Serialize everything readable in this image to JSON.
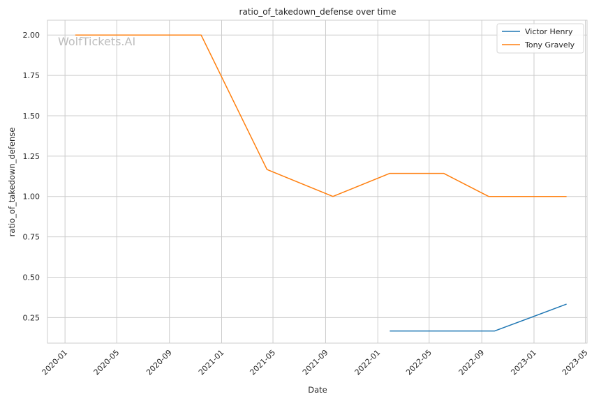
{
  "chart_data": {
    "type": "line",
    "title": "ratio_of_takedown_defense over time",
    "xlabel": "Date",
    "ylabel": "ratio_of_takedown_defense",
    "watermark": "WolfTickets.AI",
    "x_ticks": [
      "2020-01-01",
      "2020-05-01",
      "2020-09-01",
      "2021-01-01",
      "2021-05-01",
      "2021-09-01",
      "2022-01-01",
      "2022-05-01",
      "2022-09-01",
      "2023-01-01",
      "2023-05-01"
    ],
    "x_tick_labels": [
      "2020-01",
      "2020-05",
      "2020-09",
      "2021-01",
      "2021-05",
      "2021-09",
      "2022-01",
      "2022-05",
      "2022-09",
      "2023-01",
      "2023-05"
    ],
    "xlim": [
      "2019-11-21",
      "2023-05-05"
    ],
    "y_ticks": [
      0.25,
      0.5,
      0.75,
      1.0,
      1.25,
      1.5,
      1.75,
      2.0
    ],
    "y_tick_labels": [
      "0.25",
      "0.50",
      "0.75",
      "1.00",
      "1.25",
      "1.50",
      "1.75",
      "2.00"
    ],
    "ylim": [
      0.0917,
      2.0917
    ],
    "grid": true,
    "legend_position": "top-right",
    "series": [
      {
        "name": "Victor Henry",
        "color": "#1f77b4",
        "points": [
          {
            "x": "2022-01-29",
            "y": 0.1667
          },
          {
            "x": "2022-10-01",
            "y": 0.1667
          },
          {
            "x": "2023-03-18",
            "y": 0.3333
          }
        ]
      },
      {
        "name": "Tony Gravely",
        "color": "#ff7f0e",
        "points": [
          {
            "x": "2020-01-25",
            "y": 2.0
          },
          {
            "x": "2020-11-14",
            "y": 2.0
          },
          {
            "x": "2021-04-17",
            "y": 1.1667
          },
          {
            "x": "2021-09-18",
            "y": 1.0
          },
          {
            "x": "2022-01-29",
            "y": 1.1429
          },
          {
            "x": "2022-06-04",
            "y": 1.1429
          },
          {
            "x": "2022-09-17",
            "y": 1.0
          },
          {
            "x": "2023-03-18",
            "y": 1.0
          }
        ]
      }
    ]
  }
}
